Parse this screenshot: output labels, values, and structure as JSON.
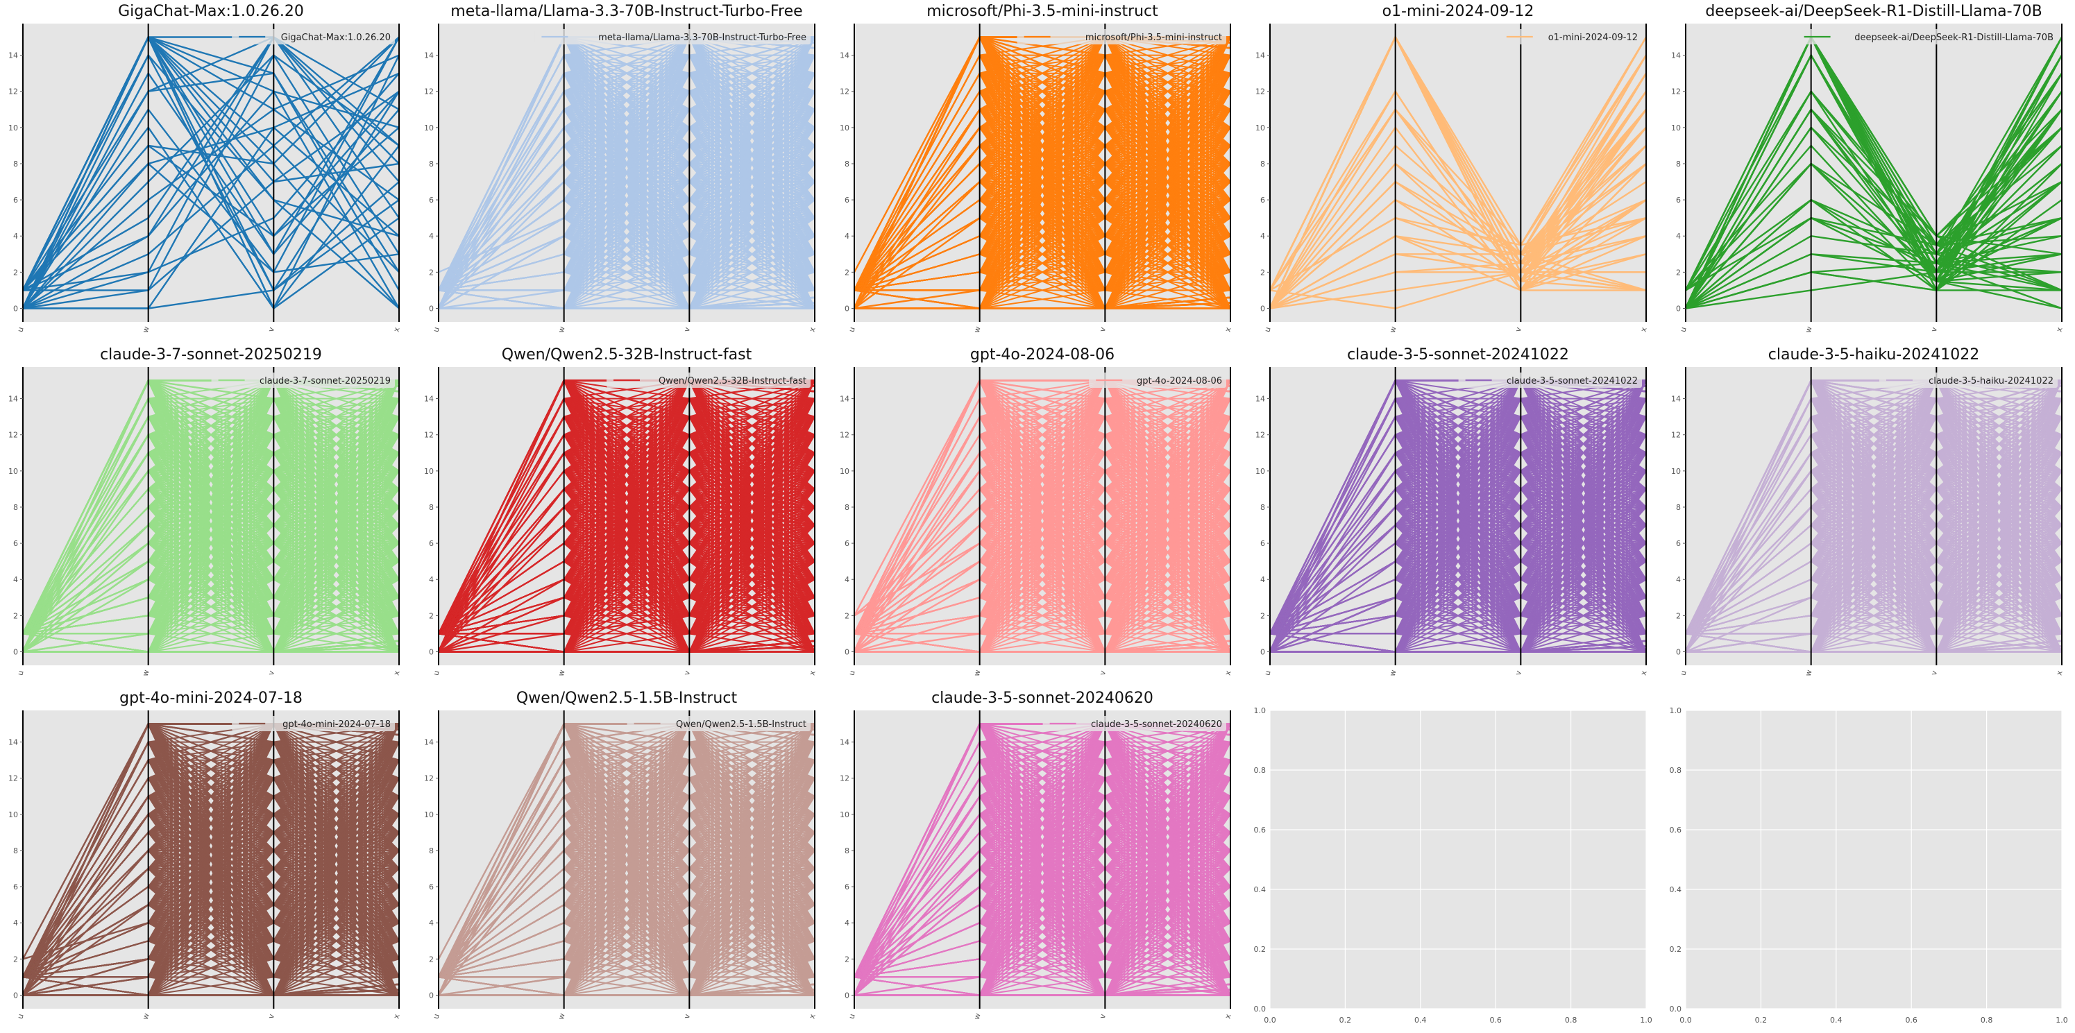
{
  "figure": {
    "background": "#ffffff",
    "panel_background": "#e5e5e5",
    "grid_color": "#ffffff"
  },
  "chart_data": [
    {
      "type": "parallel_coordinates",
      "title": "GigaChat-Max:1.0.26.20",
      "legend": "GigaChat-Max:1.0.26.20",
      "legend_loc": "upper right",
      "color": "#1f77b4",
      "axes": [
        "u",
        "w",
        "v",
        "x"
      ],
      "ylim": [
        -0.75,
        15.75
      ],
      "yticks": [
        0,
        2,
        4,
        6,
        8,
        10,
        12,
        14
      ],
      "pattern": "random",
      "lines": [
        [
          0,
          0,
          1,
          6
        ],
        [
          1,
          15,
          0,
          9
        ],
        [
          0,
          1,
          14,
          3
        ],
        [
          1,
          15,
          7,
          12
        ],
        [
          0,
          8,
          2,
          15
        ],
        [
          0,
          15,
          12,
          0
        ],
        [
          1,
          4,
          15,
          8
        ],
        [
          0,
          13,
          3,
          11
        ],
        [
          1,
          15,
          9,
          2
        ],
        [
          0,
          6,
          11,
          14
        ],
        [
          1,
          10,
          0,
          5
        ],
        [
          0,
          15,
          15,
          7
        ],
        [
          0,
          2,
          5,
          13
        ],
        [
          1,
          12,
          13,
          1
        ],
        [
          0,
          15,
          4,
          10
        ],
        [
          1,
          9,
          8,
          15
        ],
        [
          0,
          0,
          10,
          4
        ],
        [
          1,
          15,
          1,
          12
        ],
        [
          0,
          7,
          14,
          9
        ],
        [
          1,
          14,
          6,
          0
        ],
        [
          0,
          3,
          9,
          15
        ],
        [
          1,
          15,
          11,
          6
        ],
        [
          0,
          11,
          2,
          3
        ],
        [
          1,
          5,
          15,
          11
        ],
        [
          0,
          15,
          0,
          14
        ],
        [
          1,
          1,
          7,
          8
        ],
        [
          0,
          15,
          13,
          2
        ],
        [
          1,
          9,
          4,
          12
        ],
        [
          0,
          12,
          15,
          5
        ],
        [
          1,
          15,
          3,
          15
        ],
        [
          0,
          4,
          12,
          10
        ],
        [
          1,
          15,
          8,
          0
        ],
        [
          0,
          14,
          1,
          7
        ],
        [
          1,
          8,
          10,
          13
        ],
        [
          0,
          15,
          6,
          4
        ],
        [
          1,
          2,
          15,
          9
        ]
      ]
    },
    {
      "type": "parallel_coordinates",
      "title": "meta-llama/Llama-3.3-70B-Instruct-Turbo-Free",
      "legend": "meta-llama/Llama-3.3-70B-Instruct-Turbo-Free",
      "legend_loc": "upper right",
      "color": "#aec7e8",
      "axes": [
        "u",
        "w",
        "v",
        "x"
      ],
      "ylim": [
        -0.75,
        15.75
      ],
      "yticks": [
        0,
        2,
        4,
        6,
        8,
        10,
        12,
        14
      ],
      "pattern": "dense"
    },
    {
      "type": "parallel_coordinates",
      "title": "microsoft/Phi-3.5-mini-instruct",
      "legend": "microsoft/Phi-3.5-mini-instruct",
      "legend_loc": "upper right",
      "color": "#ff7f0e",
      "axes": [
        "u",
        "w",
        "v",
        "x"
      ],
      "ylim": [
        -0.75,
        15.75
      ],
      "yticks": [
        0,
        2,
        4,
        6,
        8,
        10,
        12,
        14
      ],
      "pattern": "dense"
    },
    {
      "type": "parallel_coordinates",
      "title": "o1-mini-2024-09-12",
      "legend": "o1-mini-2024-09-12",
      "legend_loc": "upper right",
      "color": "#ffbb78",
      "axes": [
        "u",
        "w",
        "v",
        "x"
      ],
      "ylim": [
        -0.75,
        15.75
      ],
      "yticks": [
        0,
        2,
        4,
        6,
        8,
        10,
        12,
        14
      ],
      "pattern": "funnel",
      "mid": [
        1,
        3.5
      ]
    },
    {
      "type": "parallel_coordinates",
      "title": "deepseek-ai/DeepSeek-R1-Distill-Llama-70B",
      "legend": "deepseek-ai/DeepSeek-R1-Distill-Llama-70B",
      "legend_loc": "upper right",
      "color": "#2ca02c",
      "axes": [
        "u",
        "w",
        "v",
        "x"
      ],
      "ylim": [
        -0.75,
        15.75
      ],
      "yticks": [
        0,
        2,
        4,
        6,
        8,
        10,
        12,
        14
      ],
      "pattern": "funnel",
      "mid": [
        1,
        4
      ]
    },
    {
      "type": "parallel_coordinates",
      "title": "claude-3-7-sonnet-20250219",
      "legend": "claude-3-7-sonnet-20250219",
      "legend_loc": "upper right",
      "color": "#98df8a",
      "axes": [
        "u",
        "w",
        "v",
        "x"
      ],
      "ylim": [
        -0.75,
        15.75
      ],
      "yticks": [
        0,
        2,
        4,
        6,
        8,
        10,
        12,
        14
      ],
      "pattern": "dense"
    },
    {
      "type": "parallel_coordinates",
      "title": "Qwen/Qwen2.5-32B-Instruct-fast",
      "legend": "Qwen/Qwen2.5-32B-Instruct-fast",
      "legend_loc": "upper right",
      "color": "#d62728",
      "axes": [
        "u",
        "w",
        "v",
        "x"
      ],
      "ylim": [
        -0.75,
        15.75
      ],
      "yticks": [
        0,
        2,
        4,
        6,
        8,
        10,
        12,
        14
      ],
      "pattern": "dense"
    },
    {
      "type": "parallel_coordinates",
      "title": "gpt-4o-2024-08-06",
      "legend": "gpt-4o-2024-08-06",
      "legend_loc": "upper right",
      "color": "#ff9896",
      "axes": [
        "u",
        "w",
        "v",
        "x"
      ],
      "ylim": [
        -0.75,
        15.75
      ],
      "yticks": [
        0,
        2,
        4,
        6,
        8,
        10,
        12,
        14
      ],
      "pattern": "dense"
    },
    {
      "type": "parallel_coordinates",
      "title": "claude-3-5-sonnet-20241022",
      "legend": "claude-3-5-sonnet-20241022",
      "legend_loc": "upper right",
      "color": "#9467bd",
      "axes": [
        "u",
        "w",
        "v",
        "x"
      ],
      "ylim": [
        -0.75,
        15.75
      ],
      "yticks": [
        0,
        2,
        4,
        6,
        8,
        10,
        12,
        14
      ],
      "pattern": "dense"
    },
    {
      "type": "parallel_coordinates",
      "title": "claude-3-5-haiku-20241022",
      "legend": "claude-3-5-haiku-20241022",
      "legend_loc": "upper right",
      "color": "#c5b0d5",
      "axes": [
        "u",
        "w",
        "v",
        "x"
      ],
      "ylim": [
        -0.75,
        15.75
      ],
      "yticks": [
        0,
        2,
        4,
        6,
        8,
        10,
        12,
        14
      ],
      "pattern": "dense"
    },
    {
      "type": "parallel_coordinates",
      "title": "gpt-4o-mini-2024-07-18",
      "legend": "gpt-4o-mini-2024-07-18",
      "legend_loc": "upper right",
      "color": "#8c564b",
      "axes": [
        "u",
        "w",
        "v",
        "x"
      ],
      "ylim": [
        -0.75,
        15.75
      ],
      "yticks": [
        0,
        2,
        4,
        6,
        8,
        10,
        12,
        14
      ],
      "pattern": "dense"
    },
    {
      "type": "parallel_coordinates",
      "title": "Qwen/Qwen2.5-1.5B-Instruct",
      "legend": "Qwen/Qwen2.5-1.5B-Instruct",
      "legend_loc": "upper right",
      "color": "#c49c94",
      "axes": [
        "u",
        "w",
        "v",
        "x"
      ],
      "ylim": [
        -0.75,
        15.75
      ],
      "yticks": [
        0,
        2,
        4,
        6,
        8,
        10,
        12,
        14
      ],
      "pattern": "dense"
    },
    {
      "type": "parallel_coordinates",
      "title": "claude-3-5-sonnet-20240620",
      "legend": "claude-3-5-sonnet-20240620",
      "legend_loc": "upper right",
      "color": "#e377c2",
      "axes": [
        "u",
        "w",
        "v",
        "x"
      ],
      "ylim": [
        -0.75,
        15.75
      ],
      "yticks": [
        0,
        2,
        4,
        6,
        8,
        10,
        12,
        14
      ],
      "pattern": "dense"
    },
    {
      "type": "empty",
      "xlim": [
        0,
        1
      ],
      "ylim": [
        0,
        1
      ],
      "xticks": [
        "0.0",
        "0.2",
        "0.4",
        "0.6",
        "0.8",
        "1.0"
      ],
      "yticks": [
        "0.0",
        "0.2",
        "0.4",
        "0.6",
        "0.8",
        "1.0"
      ],
      "grid": true
    },
    {
      "type": "empty",
      "xlim": [
        0,
        1
      ],
      "ylim": [
        0,
        1
      ],
      "xticks": [
        "0.0",
        "0.2",
        "0.4",
        "0.6",
        "0.8",
        "1.0"
      ],
      "yticks": [
        "0.0",
        "0.2",
        "0.4",
        "0.6",
        "0.8",
        "1.0"
      ],
      "grid": true
    }
  ]
}
